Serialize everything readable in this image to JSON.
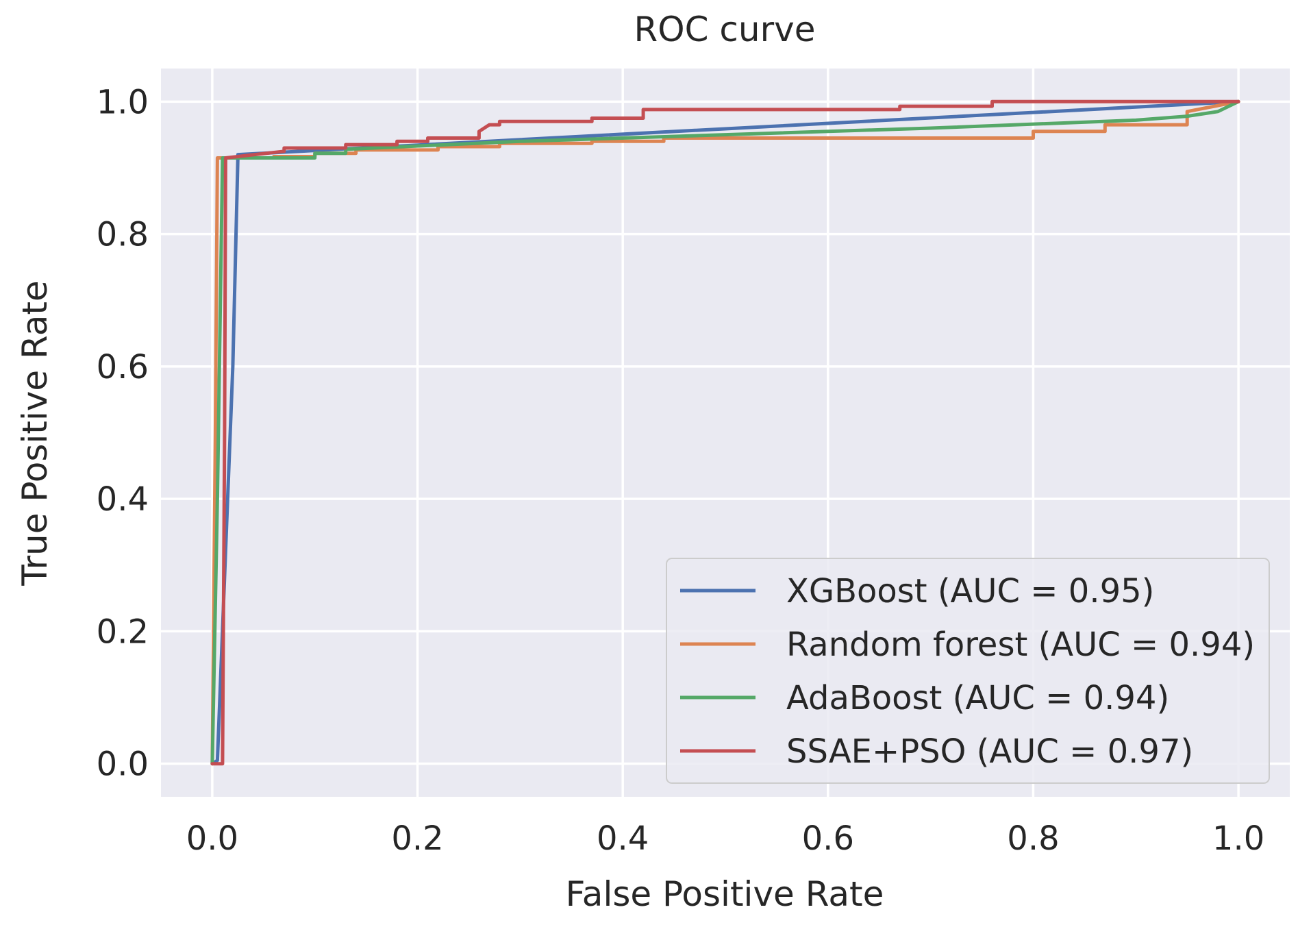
{
  "chart_data": {
    "type": "line",
    "title": "ROC curve",
    "xlabel": "False Positive Rate",
    "ylabel": "True Positive Rate",
    "xlim": [
      -0.05,
      1.05
    ],
    "ylim": [
      -0.05,
      1.05
    ],
    "xticks": [
      0.0,
      0.2,
      0.4,
      0.6,
      0.8,
      1.0
    ],
    "yticks": [
      0.0,
      0.2,
      0.4,
      0.6,
      0.8,
      1.0
    ],
    "tick_labels_x": [
      "0.0",
      "0.2",
      "0.4",
      "0.6",
      "0.8",
      "1.0"
    ],
    "tick_labels_y": [
      "0.0",
      "0.2",
      "0.4",
      "0.6",
      "0.8",
      "1.0"
    ],
    "grid": true,
    "legend_position": "lower-right",
    "series": [
      {
        "name": "XGBoost (AUC = 0.95)",
        "color": "#4c72b0",
        "x": [
          0.0,
          0.005,
          0.02,
          0.025,
          1.0
        ],
        "y": [
          0.0,
          0.005,
          0.6,
          0.92,
          1.0
        ]
      },
      {
        "name": "Random forest (AUC = 0.94)",
        "color": "#dd8452",
        "x": [
          0.0,
          0.003,
          0.005,
          0.06,
          0.06,
          0.1,
          0.1,
          0.14,
          0.14,
          0.22,
          0.22,
          0.28,
          0.28,
          0.37,
          0.37,
          0.44,
          0.44,
          0.6,
          0.8,
          0.8,
          0.87,
          0.87,
          0.95,
          0.95,
          1.0
        ],
        "y": [
          0.0,
          0.5,
          0.915,
          0.915,
          0.917,
          0.917,
          0.922,
          0.922,
          0.927,
          0.927,
          0.932,
          0.932,
          0.937,
          0.937,
          0.94,
          0.94,
          0.945,
          0.945,
          0.945,
          0.955,
          0.955,
          0.965,
          0.965,
          0.985,
          1.0
        ]
      },
      {
        "name": "AdaBoost (AUC = 0.94)",
        "color": "#55a868",
        "x": [
          0.0,
          0.005,
          0.01,
          0.1,
          0.1,
          0.13,
          0.13,
          0.3,
          0.5,
          0.7,
          0.9,
          0.95,
          0.98,
          1.0
        ],
        "y": [
          0.0,
          0.4,
          0.915,
          0.915,
          0.922,
          0.922,
          0.928,
          0.94,
          0.95,
          0.96,
          0.972,
          0.978,
          0.985,
          1.0
        ]
      },
      {
        "name": "SSAE+PSO (AUC = 0.97)",
        "color": "#c44e52",
        "x": [
          0.0,
          0.01,
          0.012,
          0.013,
          0.07,
          0.07,
          0.13,
          0.13,
          0.18,
          0.18,
          0.21,
          0.21,
          0.26,
          0.26,
          0.27,
          0.28,
          0.28,
          0.37,
          0.37,
          0.42,
          0.42,
          0.67,
          0.67,
          0.76,
          0.76,
          1.0
        ],
        "y": [
          0.0,
          0.0,
          0.5,
          0.915,
          0.925,
          0.93,
          0.93,
          0.935,
          0.935,
          0.94,
          0.94,
          0.945,
          0.945,
          0.955,
          0.965,
          0.965,
          0.97,
          0.97,
          0.975,
          0.975,
          0.988,
          0.988,
          0.993,
          0.993,
          1.0,
          1.0
        ]
      }
    ]
  }
}
